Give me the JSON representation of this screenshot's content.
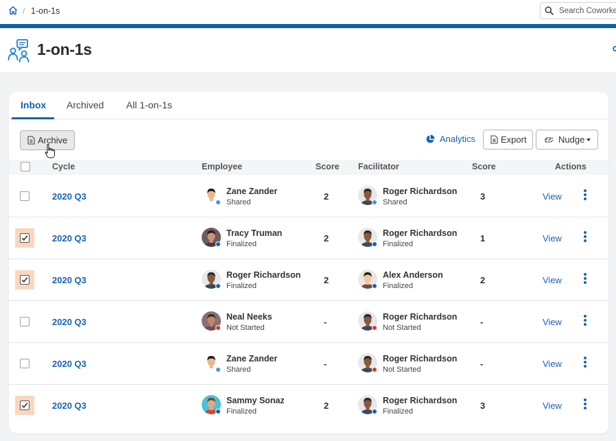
{
  "breadcrumb": {
    "current": "1-on-1s",
    "separator": "/"
  },
  "search": {
    "placeholder": "Search Coworkers"
  },
  "page": {
    "title": "1-on-1s"
  },
  "tabs": [
    {
      "label": "Inbox",
      "active": true
    },
    {
      "label": "Archived",
      "active": false
    },
    {
      "label": "All 1-on-1s",
      "active": false
    }
  ],
  "toolbar": {
    "archive_label": "Archive",
    "analytics_label": "Analytics",
    "export_label": "Export",
    "nudge_label": "Nudge"
  },
  "table": {
    "headers": {
      "cycle": "Cycle",
      "employee": "Employee",
      "employee_score": "Score",
      "facilitator": "Facilitator",
      "facilitator_score": "Score",
      "actions": "Actions"
    },
    "view_label": "View",
    "rows": [
      {
        "checked": false,
        "cycle": "2020 Q3",
        "employee": "Zane Zander",
        "employee_status": "Shared",
        "employee_score": "2",
        "facilitator": "Roger Richardson",
        "facilitator_status": "Shared",
        "facilitator_score": "3"
      },
      {
        "checked": true,
        "cycle": "2020 Q3",
        "employee": "Tracy Truman",
        "employee_status": "Finalized",
        "employee_score": "2",
        "facilitator": "Roger Richardson",
        "facilitator_status": "Finalized",
        "facilitator_score": "1"
      },
      {
        "checked": true,
        "cycle": "2020 Q3",
        "employee": "Roger Richardson",
        "employee_status": "Finalized",
        "employee_score": "2",
        "facilitator": "Alex Anderson",
        "facilitator_status": "Finalized",
        "facilitator_score": "2"
      },
      {
        "checked": false,
        "cycle": "2020 Q3",
        "employee": "Neal Neeks",
        "employee_status": "Not Started",
        "employee_score": "-",
        "facilitator": "Roger Richardson",
        "facilitator_status": "Not Started",
        "facilitator_score": "-"
      },
      {
        "checked": false,
        "cycle": "2020 Q3",
        "employee": "Zane Zander",
        "employee_status": "Shared",
        "employee_score": "-",
        "facilitator": "Roger Richardson",
        "facilitator_status": "Not Started",
        "facilitator_score": "-"
      },
      {
        "checked": true,
        "cycle": "2020 Q3",
        "employee": "Sammy Sonaz",
        "employee_status": "Finalized",
        "employee_score": "2",
        "facilitator": "Roger Richardson",
        "facilitator_status": "Finalized",
        "facilitator_score": "3"
      }
    ]
  },
  "colors": {
    "accent": "#1762b5",
    "brand_bar": "#0e5fa8",
    "status_shared": "#3b9ae1",
    "status_finalized": "#1762b5",
    "status_not_started": "#d9372b",
    "selected_highlight": "#f9d6bd"
  }
}
